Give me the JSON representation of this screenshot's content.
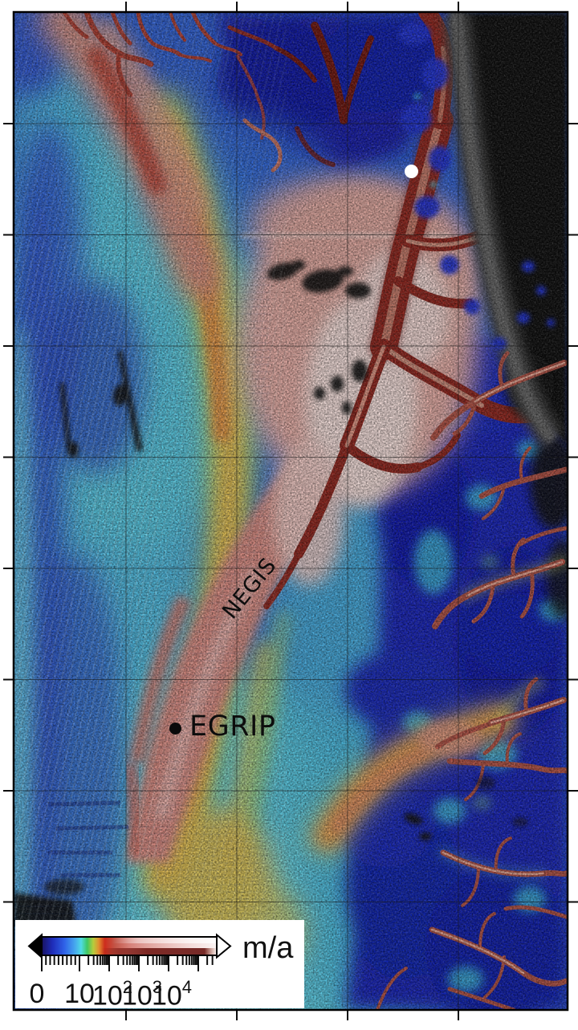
{
  "map": {
    "labels": {
      "ice_stream": "NEGIS",
      "drill_site": "EGRIP"
    },
    "markers": [
      {
        "name": "egrip-drill-site-marker",
        "style": "black-dot"
      },
      {
        "name": "coastal-outlet-marker",
        "style": "white-dot"
      }
    ]
  },
  "legend": {
    "unit": "m/a",
    "scale": "log",
    "tick_labels": [
      {
        "base": "0",
        "sup": ""
      },
      {
        "base": "10",
        "sup": ""
      },
      {
        "base": "10",
        "sup": "2"
      },
      {
        "base": "10",
        "sup": "3"
      },
      {
        "base": "10",
        "sup": "4"
      }
    ],
    "colorbar_colors": [
      "#181260",
      "#2f62e8",
      "#4fdbe4",
      "#3ec763",
      "#b8cc3c",
      "#e29030",
      "#cd2d1c",
      "#d68078",
      "#eabfbb",
      "#fbf4f3"
    ]
  }
}
